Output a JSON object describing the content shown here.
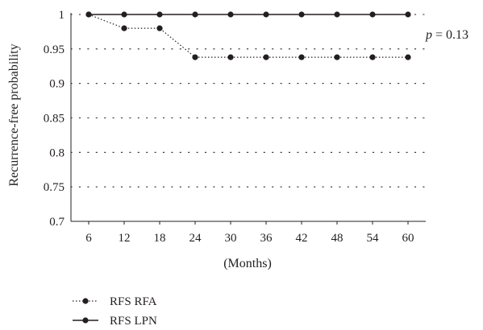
{
  "chart_data": {
    "type": "line",
    "ylabel": "Recurrence-free probability",
    "xlabel": "(Months)",
    "categories": [
      "6",
      "12",
      "18",
      "24",
      "30",
      "36",
      "42",
      "48",
      "54",
      "60"
    ],
    "x": [
      6,
      12,
      18,
      24,
      30,
      36,
      42,
      48,
      54,
      60
    ],
    "ylim": [
      0.7,
      1
    ],
    "yticks": [
      "0.7",
      "0.75",
      "0.8",
      "0.85",
      "0.9",
      "0.95",
      "1"
    ],
    "ytick_values": [
      0.7,
      0.75,
      0.8,
      0.85,
      0.9,
      0.95,
      1
    ],
    "grid": "horizontal dotted",
    "legend_position": "bottom-left",
    "annotation": {
      "italic": "p",
      "text": " = 0.13"
    },
    "series": [
      {
        "name": "RFS RFA",
        "style": "dotted",
        "marker": "circle",
        "values": [
          1,
          0.98,
          0.98,
          0.938,
          0.938,
          0.938,
          0.938,
          0.938,
          0.938,
          0.938
        ]
      },
      {
        "name": "RFS LPN",
        "style": "solid",
        "marker": "circle",
        "values": [
          1,
          1,
          1,
          1,
          1,
          1,
          1,
          1,
          1,
          1
        ]
      }
    ],
    "colors": {
      "ink": "#231f20",
      "grid": "#231f20"
    }
  }
}
